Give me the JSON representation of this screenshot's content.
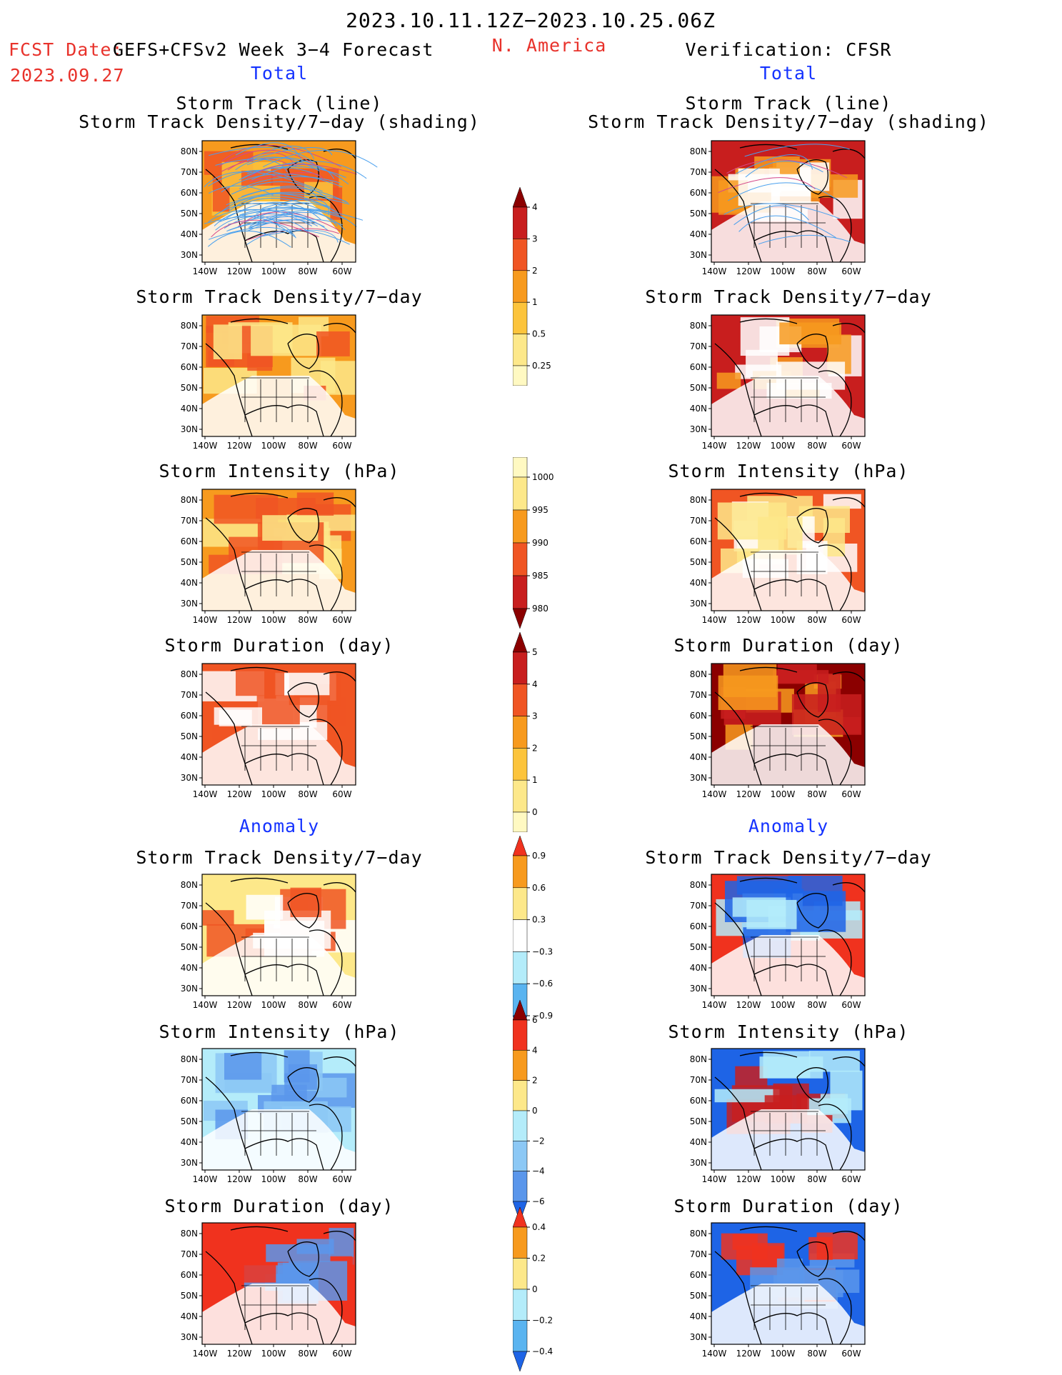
{
  "header": {
    "date_range": "2023.10.11.12Z−2023.10.25.06Z",
    "fcst_label": "FCST Date:",
    "model_label": "GEFS+CFSv2 Week 3−4 Forecast",
    "fcst_date": "2023.09.27",
    "region": "N. America",
    "verification": "Verification: CFSR",
    "left_section": "Total",
    "right_section": "Total",
    "left_anomaly": "Anomaly",
    "right_anomaly": "Anomaly"
  },
  "panel_titles": {
    "track_line": "Storm Track (line)",
    "track_shading": "Storm Track Density/7−day (shading)",
    "density": "Storm Track Density/7−day",
    "intensity": "Storm Intensity (hPa)",
    "duration": "Storm Duration (day)"
  },
  "axes": {
    "lat_labels": [
      "80N",
      "70N",
      "60N",
      "50N",
      "40N",
      "30N"
    ],
    "lon_labels": [
      "140W",
      "120W",
      "100W",
      "80W",
      "60W"
    ]
  },
  "colorbars": {
    "density_total": {
      "labels": [
        "4",
        "3",
        "2",
        "1",
        "0.5",
        "0.25"
      ],
      "colors": [
        "#8b0000",
        "#c81e1e",
        "#f05523",
        "#f79a1e",
        "#fcc43c",
        "#fde88a",
        "#fff9c2"
      ]
    },
    "intensity_total": {
      "labels": [
        "1000",
        "995",
        "990",
        "985",
        "980"
      ],
      "colors": [
        "#fff9c2",
        "#fde88a",
        "#f79a1e",
        "#f05523",
        "#c81e1e",
        "#8b0000"
      ]
    },
    "duration_total": {
      "labels": [
        "5",
        "4",
        "3",
        "2",
        "1",
        "0"
      ],
      "colors": [
        "#8b0000",
        "#c81e1e",
        "#f05523",
        "#f79a1e",
        "#fcc43c",
        "#fde88a",
        "#fff9c2"
      ]
    },
    "density_anom": {
      "labels": [
        "0.9",
        "0.6",
        "0.3",
        "−0.3",
        "−0.6",
        "−0.9"
      ],
      "colors": [
        "#f0321e",
        "#f79a1e",
        "#fde88a",
        "#ffffff",
        "#b4ecfa",
        "#5ab4f0",
        "#1e64e6"
      ]
    },
    "intensity_anom": {
      "labels": [
        "6",
        "4",
        "2",
        "0",
        "−2",
        "−4",
        "−6"
      ],
      "colors": [
        "#8b0000",
        "#f0321e",
        "#f79a1e",
        "#fde88a",
        "#b4ecfa",
        "#8cc8f5",
        "#5a96eb",
        "#1e64e6"
      ]
    },
    "duration_anom": {
      "labels": [
        "0.4",
        "0.2",
        "0",
        "−0.2",
        "−0.4"
      ],
      "colors": [
        "#f0321e",
        "#f79a1e",
        "#fde88a",
        "#b4ecfa",
        "#5ab4f0",
        "#1e64e6"
      ]
    }
  },
  "panels": [
    {
      "id": "fc-track",
      "fill": [
        "#f79a1e",
        "#fcc43c",
        "#f05523"
      ],
      "tracks": true
    },
    {
      "id": "fc-density",
      "fill": [
        "#f79a1e",
        "#f05523",
        "#fde88a"
      ]
    },
    {
      "id": "fc-intensity",
      "fill": [
        "#f79a1e",
        "#f05523",
        "#fde88a"
      ]
    },
    {
      "id": "fc-duration",
      "fill": [
        "#f05523",
        "#f05523",
        "#fff"
      ]
    },
    {
      "id": "fc-density-anom",
      "fill": [
        "#fde88a",
        "#f05523",
        "#fff"
      ]
    },
    {
      "id": "fc-intensity-anom",
      "fill": [
        "#b4ecfa",
        "#8cc8f5",
        "#5a96eb"
      ]
    },
    {
      "id": "fc-duration-anom",
      "fill": [
        "#f0321e",
        "#f0321e",
        "#5a96eb"
      ]
    },
    {
      "id": "ob-track",
      "fill": [
        "#c81e1e",
        "#f79a1e",
        "#fff"
      ],
      "tracks": true
    },
    {
      "id": "ob-density",
      "fill": [
        "#c81e1e",
        "#f79a1e",
        "#fff"
      ]
    },
    {
      "id": "ob-intensity",
      "fill": [
        "#f05523",
        "#fde88a",
        "#fff"
      ]
    },
    {
      "id": "ob-duration",
      "fill": [
        "#8b0000",
        "#f79a1e",
        "#c81e1e"
      ]
    },
    {
      "id": "ob-density-anom",
      "fill": [
        "#f0321e",
        "#1e64e6",
        "#b4ecfa"
      ]
    },
    {
      "id": "ob-intensity-anom",
      "fill": [
        "#1e64e6",
        "#c81e1e",
        "#b4ecfa"
      ]
    },
    {
      "id": "ob-duration-anom",
      "fill": [
        "#1e64e6",
        "#f0321e",
        "#5a96eb"
      ]
    }
  ]
}
